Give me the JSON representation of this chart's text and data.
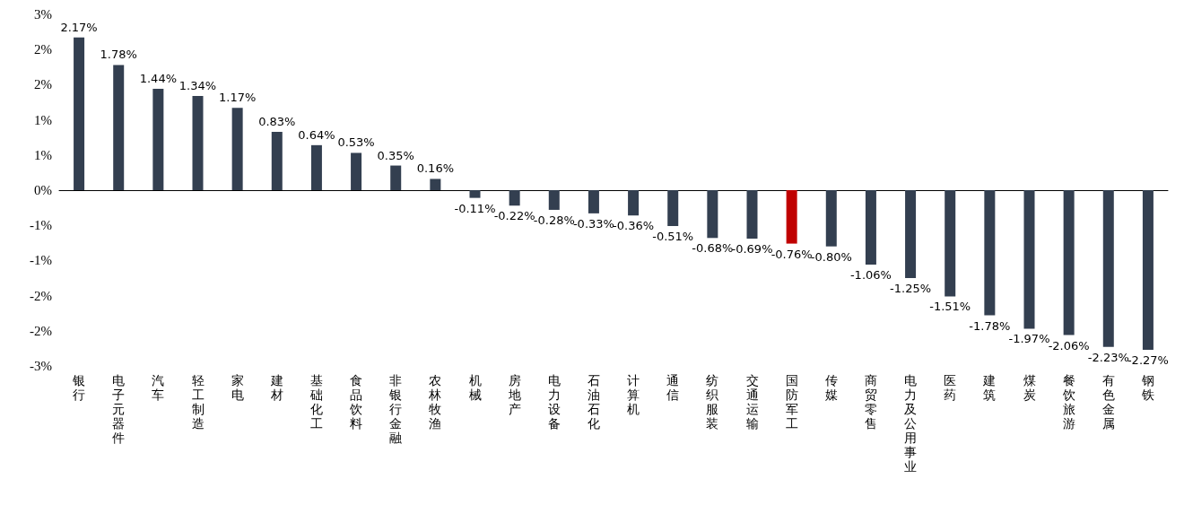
{
  "chart_data": {
    "type": "bar",
    "categories": [
      "银行",
      "电子元器件",
      "汽车",
      "轻工制造",
      "家电",
      "建材",
      "基础化工",
      "食品饮料",
      "非银行金融",
      "农林牧渔",
      "机械",
      "房地产",
      "电力设备",
      "石油石化",
      "计算机",
      "通信",
      "纺织服装",
      "交通运输",
      "国防军工",
      "传媒",
      "商贸零售",
      "电力及公用事业",
      "医药",
      "建筑",
      "煤炭",
      "餐饮旅游",
      "有色金属",
      "钢铁"
    ],
    "values": [
      2.17,
      1.78,
      1.44,
      1.34,
      1.17,
      0.83,
      0.64,
      0.53,
      0.35,
      0.16,
      -0.11,
      -0.22,
      -0.28,
      -0.33,
      -0.36,
      -0.51,
      -0.68,
      -0.69,
      -0.76,
      -0.8,
      -1.06,
      -1.25,
      -1.51,
      -1.78,
      -1.97,
      -2.06,
      -2.23,
      -2.27
    ],
    "value_labels": [
      "2.17%",
      "1.78%",
      "1.44%",
      "1.34%",
      "1.17%",
      "0.83%",
      "0.64%",
      "0.53%",
      "0.35%",
      "0.16%",
      "-0.11%",
      "-0.22%",
      "-0.28%",
      "-0.33%",
      "-0.36%",
      "-0.51%",
      "-0.68%",
      "-0.69%",
      "-0.76%",
      "-0.80%",
      "-1.06%",
      "-1.25%",
      "-1.51%",
      "-1.78%",
      "-1.97%",
      "-2.06%",
      "-2.23%",
      "-2.27%"
    ],
    "colors": [
      "#333f50",
      "#333f50",
      "#333f50",
      "#333f50",
      "#333f50",
      "#333f50",
      "#333f50",
      "#333f50",
      "#333f50",
      "#333f50",
      "#333f50",
      "#333f50",
      "#333f50",
      "#333f50",
      "#333f50",
      "#333f50",
      "#333f50",
      "#333f50",
      "#c00000",
      "#333f50",
      "#333f50",
      "#333f50",
      "#333f50",
      "#333f50",
      "#333f50",
      "#333f50",
      "#333f50",
      "#333f50"
    ],
    "ylim": [
      -2.5,
      2.5
    ],
    "yticks": [
      {
        "value": 2.5,
        "label": "3%"
      },
      {
        "value": 2,
        "label": "2%"
      },
      {
        "value": 1.5,
        "label": "2%"
      },
      {
        "value": 1,
        "label": "1%"
      },
      {
        "value": 0.5,
        "label": "1%"
      },
      {
        "value": 0,
        "label": "0%"
      },
      {
        "value": -0.5,
        "label": "-1%"
      },
      {
        "value": -1,
        "label": "-1%"
      },
      {
        "value": -1.5,
        "label": "-2%"
      },
      {
        "value": -2,
        "label": "-2%"
      },
      {
        "value": -2.5,
        "label": "-3%"
      }
    ]
  }
}
